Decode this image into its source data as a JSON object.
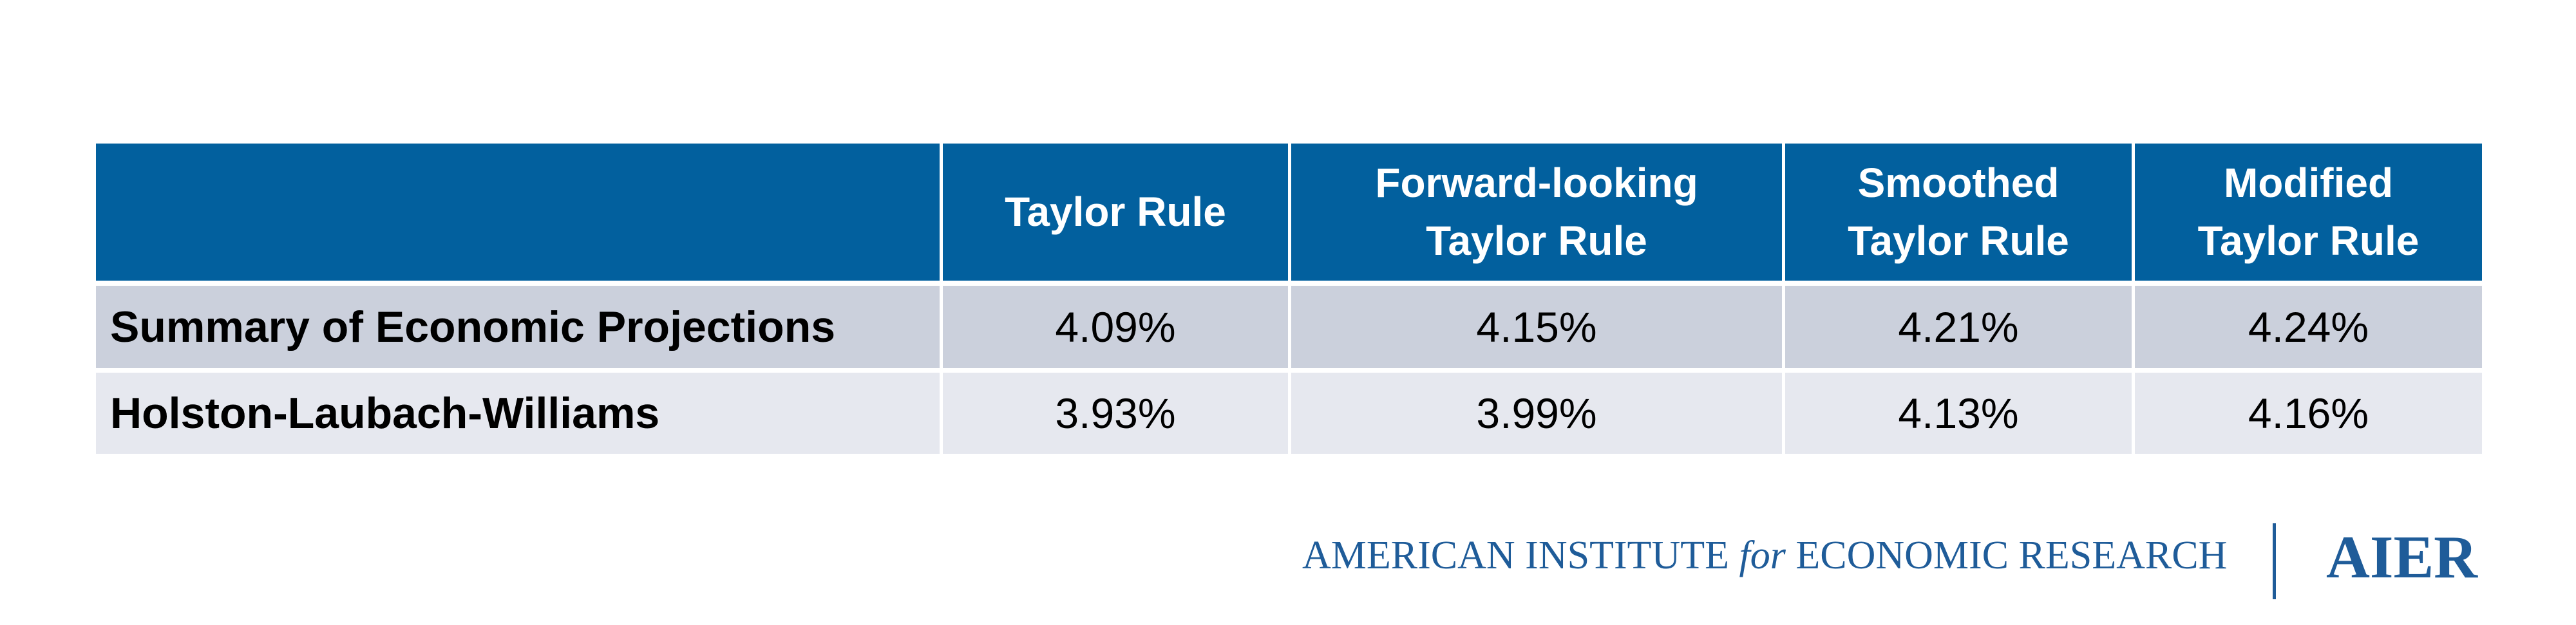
{
  "table": {
    "header": [
      "Taylor Rule",
      "Forward-looking Taylor Rule",
      "Smoothed Taylor Rule",
      "Modified Taylor Rule"
    ],
    "rows": [
      {
        "label": "Summary of Economic Projections",
        "values": [
          "4.09%",
          "4.15%",
          "4.21%",
          "4.24%"
        ]
      },
      {
        "label": "Holston-Laubach-Williams",
        "values": [
          "3.93%",
          "3.99%",
          "4.13%",
          "4.16%"
        ]
      }
    ]
  },
  "footer": {
    "organization": [
      "AMERICAN INSTITUTE",
      "for",
      "ECONOMIC RESEARCH"
    ],
    "logo": "AIER"
  }
}
